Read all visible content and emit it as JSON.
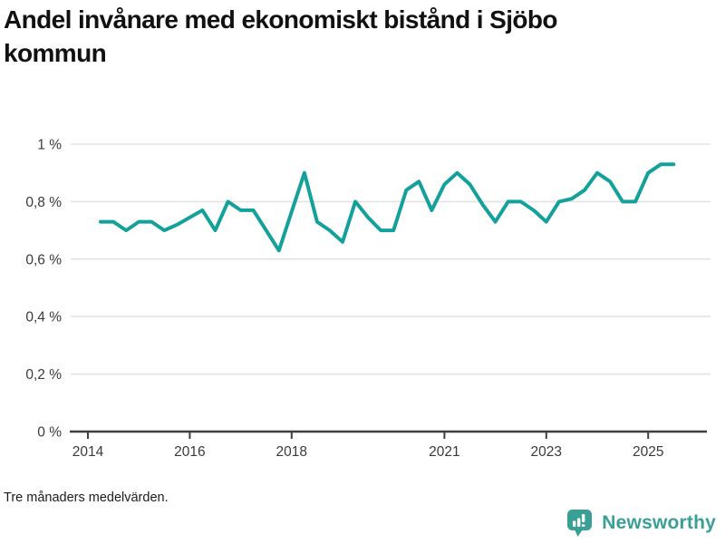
{
  "header": {
    "title": "Andel invånare med ekonomiskt bistånd i Sjöbo kommun",
    "title_line1": "Andel invånare med ekonomiskt bistånd i Sjöbo",
    "title_line2": "kommun"
  },
  "footer": {
    "note": "Tre månaders medelvärden.",
    "brand": "Newsworthy"
  },
  "colors": {
    "line": "#14a09b",
    "brand": "#3aa096",
    "grid": "#e3e3e3",
    "axis": "#3f3f3f",
    "tick_text": "#3a3a3a"
  },
  "chart_data": {
    "type": "line",
    "title": "Andel invånare med ekonomiskt bistånd i Sjöbo kommun",
    "note": "Tre månaders medelvärden.",
    "unit": "%",
    "ylim": [
      0,
      1
    ],
    "yticks": [
      0,
      0.2,
      0.4,
      0.6,
      0.8,
      1
    ],
    "ytick_labels": [
      "0 %",
      "0,2 %",
      "0,4 %",
      "0,6 %",
      "0,8 %",
      "1 %"
    ],
    "xtick_years": [
      2014,
      2016,
      2018,
      2021,
      2023,
      2025
    ],
    "xtick_labels": [
      "2014",
      "2016",
      "2018",
      "2021",
      "2023",
      "2025"
    ],
    "grid": true,
    "legend": "none",
    "x": [
      "2014-04",
      "2014-07",
      "2014-10",
      "2015-01",
      "2015-04",
      "2015-07",
      "2015-10",
      "2016-01",
      "2016-04",
      "2016-07",
      "2016-10",
      "2017-01",
      "2017-04",
      "2017-07",
      "2017-10",
      "2018-01",
      "2018-04",
      "2018-07",
      "2018-10",
      "2019-01",
      "2019-04",
      "2019-07",
      "2019-10",
      "2020-01",
      "2020-04",
      "2020-07",
      "2020-10",
      "2021-01",
      "2021-04",
      "2021-07",
      "2021-10",
      "2022-01",
      "2022-04",
      "2022-07",
      "2022-10",
      "2023-01",
      "2023-04",
      "2023-07",
      "2023-10",
      "2024-01",
      "2024-04",
      "2024-07",
      "2024-10",
      "2025-01",
      "2025-04",
      "2025-07"
    ],
    "values": [
      0.73,
      0.73,
      0.7,
      0.73,
      0.73,
      0.7,
      0.72,
      0.745,
      0.77,
      0.7,
      0.8,
      0.77,
      0.77,
      0.7,
      0.63,
      0.765,
      0.9,
      0.73,
      0.7,
      0.66,
      0.8,
      0.745,
      0.7,
      0.7,
      0.84,
      0.87,
      0.77,
      0.86,
      0.9,
      0.86,
      0.79,
      0.73,
      0.8,
      0.8,
      0.77,
      0.73,
      0.8,
      0.81,
      0.84,
      0.9,
      0.87,
      0.8,
      0.8,
      0.9,
      0.93,
      0.93
    ]
  }
}
